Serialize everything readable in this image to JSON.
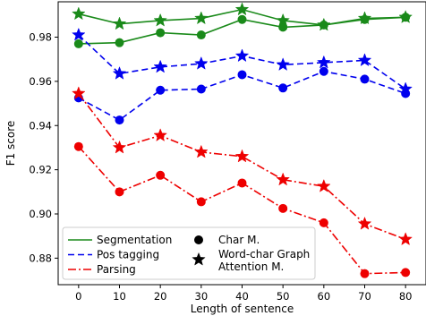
{
  "chart_data": {
    "type": "line",
    "title": "",
    "xlabel": "Length of sentence",
    "ylabel": "F1 score",
    "x": [
      0,
      10,
      20,
      30,
      40,
      50,
      60,
      70,
      80
    ],
    "xlim": [
      -5,
      85
    ],
    "ylim": [
      0.868,
      0.996
    ],
    "xticks": [
      0,
      10,
      20,
      30,
      40,
      50,
      60,
      70,
      80
    ],
    "yticks": [
      0.88,
      0.9,
      0.92,
      0.94,
      0.96,
      0.98
    ],
    "ytick_labels": [
      "0.88",
      "0.90",
      "0.92",
      "0.94",
      "0.96",
      "0.98"
    ],
    "grid": false,
    "legend_position": "lower-left",
    "series": [
      {
        "task": "Segmentation",
        "model": "Char M.",
        "color": "#1a8a1a",
        "linestyle": "solid",
        "marker": "circle",
        "values": [
          0.977,
          0.9775,
          0.982,
          0.981,
          0.988,
          0.9845,
          0.9855,
          0.988,
          0.989
        ]
      },
      {
        "task": "Segmentation",
        "model": "Word-char Graph Attention M.",
        "color": "#1a8a1a",
        "linestyle": "solid",
        "marker": "star",
        "values": [
          0.9905,
          0.986,
          0.9875,
          0.9885,
          0.9925,
          0.9875,
          0.9855,
          0.9885,
          0.989
        ]
      },
      {
        "task": "Pos tagging",
        "model": "Char M.",
        "color": "#0000ee",
        "linestyle": "dashed",
        "marker": "circle",
        "values": [
          0.9525,
          0.9425,
          0.956,
          0.9565,
          0.963,
          0.957,
          0.9645,
          0.961,
          0.9545
        ]
      },
      {
        "task": "Pos tagging",
        "model": "Word-char Graph Attention M.",
        "color": "#0000ee",
        "linestyle": "dashed",
        "marker": "star",
        "values": [
          0.981,
          0.9635,
          0.9665,
          0.968,
          0.9715,
          0.9675,
          0.9685,
          0.9695,
          0.9565
        ]
      },
      {
        "task": "Parsing",
        "model": "Char M.",
        "color": "#ee0000",
        "linestyle": "dashdot",
        "marker": "circle",
        "values": [
          0.9305,
          0.91,
          0.9175,
          0.9055,
          0.914,
          0.9025,
          0.896,
          0.873,
          0.8735
        ]
      },
      {
        "task": "Parsing",
        "model": "Word-char Graph Attention M.",
        "color": "#ee0000",
        "linestyle": "dashdot",
        "marker": "star",
        "values": [
          0.9545,
          0.93,
          0.9355,
          0.928,
          0.926,
          0.9155,
          0.9125,
          0.8955,
          0.8885
        ]
      }
    ],
    "legend": {
      "lines": [
        {
          "label": "Segmentation",
          "color": "#1a8a1a",
          "linestyle": "solid"
        },
        {
          "label": "Pos tagging",
          "color": "#0000ee",
          "linestyle": "dashed"
        },
        {
          "label": "Parsing",
          "color": "#ee0000",
          "linestyle": "dashdot"
        }
      ],
      "markers": [
        {
          "label_lines": [
            "Char M."
          ],
          "marker": "circle"
        },
        {
          "label_lines": [
            "Word-char Graph",
            "Attention M."
          ],
          "marker": "star"
        }
      ]
    }
  }
}
